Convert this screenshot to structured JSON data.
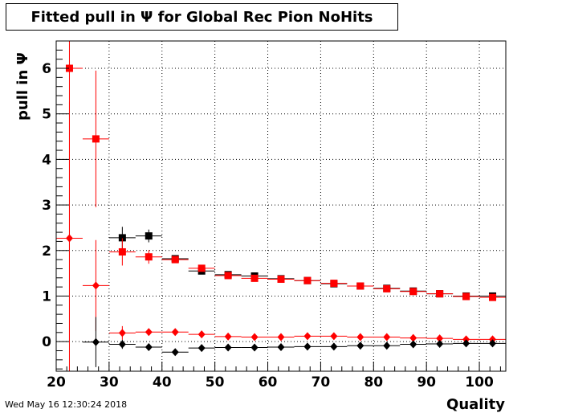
{
  "header": {
    "title": "Fitted pull in  Ψ  for Global Rec Pion NoHits",
    "datestamp": "Wed May 16 12:30:24 2018"
  },
  "chart_data": {
    "type": "scatter",
    "title": "Fitted pull in  Ψ  for Global Rec Pion NoHits",
    "xlabel": "Quality",
    "ylabel": "pull in  Ψ",
    "xlim": [
      20,
      105
    ],
    "ylim": [
      -0.65,
      6.6
    ],
    "xticks": [
      20,
      30,
      40,
      50,
      60,
      70,
      80,
      90,
      100
    ],
    "yticks": [
      0,
      1,
      2,
      3,
      4,
      5,
      6
    ],
    "grid": true,
    "bin_half_width": 2.5,
    "colors": {
      "black": "#000000",
      "red": "#ff0000"
    },
    "series": [
      {
        "color": "#000000",
        "marker": "square",
        "points": [
          {
            "x": 32.5,
            "y": 2.28,
            "err": 0.24
          },
          {
            "x": 37.5,
            "y": 2.32,
            "err": 0.14
          },
          {
            "x": 42.5,
            "y": 1.82,
            "err": 0.05
          },
          {
            "x": 47.5,
            "y": 1.55,
            "err": 0.04
          },
          {
            "x": 52.5,
            "y": 1.47,
            "err": 0.03
          },
          {
            "x": 57.5,
            "y": 1.44,
            "err": 0.03
          },
          {
            "x": 62.5,
            "y": 1.38,
            "err": 0.03
          },
          {
            "x": 67.5,
            "y": 1.34,
            "err": 0.02
          },
          {
            "x": 72.5,
            "y": 1.27,
            "err": 0.02
          },
          {
            "x": 77.5,
            "y": 1.22,
            "err": 0.02
          },
          {
            "x": 82.5,
            "y": 1.17,
            "err": 0.02
          },
          {
            "x": 87.5,
            "y": 1.11,
            "err": 0.02
          },
          {
            "x": 92.5,
            "y": 1.05,
            "err": 0.02
          },
          {
            "x": 97.5,
            "y": 1.0,
            "err": 0.02
          },
          {
            "x": 102.5,
            "y": 1.0,
            "err": 0.02
          }
        ]
      },
      {
        "color": "#ff0000",
        "marker": "square",
        "points": [
          {
            "x": 22.5,
            "y": 6.0,
            "err": 6.0
          },
          {
            "x": 27.5,
            "y": 4.45,
            "err": 1.5
          },
          {
            "x": 32.5,
            "y": 1.97,
            "err": 0.3
          },
          {
            "x": 37.5,
            "y": 1.86,
            "err": 0.15
          },
          {
            "x": 42.5,
            "y": 1.8,
            "err": 0.06
          },
          {
            "x": 47.5,
            "y": 1.61,
            "err": 0.04
          },
          {
            "x": 52.5,
            "y": 1.45,
            "err": 0.03
          },
          {
            "x": 57.5,
            "y": 1.39,
            "err": 0.03
          },
          {
            "x": 62.5,
            "y": 1.37,
            "err": 0.03
          },
          {
            "x": 67.5,
            "y": 1.34,
            "err": 0.02
          },
          {
            "x": 72.5,
            "y": 1.28,
            "err": 0.02
          },
          {
            "x": 77.5,
            "y": 1.22,
            "err": 0.02
          },
          {
            "x": 82.5,
            "y": 1.16,
            "err": 0.02
          },
          {
            "x": 87.5,
            "y": 1.1,
            "err": 0.02
          },
          {
            "x": 92.5,
            "y": 1.05,
            "err": 0.02
          },
          {
            "x": 97.5,
            "y": 0.99,
            "err": 0.02
          },
          {
            "x": 102.5,
            "y": 0.97,
            "err": 0.02
          }
        ]
      },
      {
        "color": "#ff0000",
        "marker": "diamond",
        "points": [
          {
            "x": 22.5,
            "y": 2.27,
            "err": 3.0
          },
          {
            "x": 27.5,
            "y": 1.23,
            "err": 1.0
          },
          {
            "x": 32.5,
            "y": 0.19,
            "err": 0.15
          },
          {
            "x": 37.5,
            "y": 0.21,
            "err": 0.06
          },
          {
            "x": 42.5,
            "y": 0.21,
            "err": 0.03
          },
          {
            "x": 47.5,
            "y": 0.16,
            "err": 0.02
          },
          {
            "x": 52.5,
            "y": 0.11,
            "err": 0.02
          },
          {
            "x": 57.5,
            "y": 0.1,
            "err": 0.02
          },
          {
            "x": 62.5,
            "y": 0.1,
            "err": 0.02
          },
          {
            "x": 67.5,
            "y": 0.12,
            "err": 0.02
          },
          {
            "x": 72.5,
            "y": 0.12,
            "err": 0.02
          },
          {
            "x": 77.5,
            "y": 0.1,
            "err": 0.02
          },
          {
            "x": 82.5,
            "y": 0.1,
            "err": 0.02
          },
          {
            "x": 87.5,
            "y": 0.08,
            "err": 0.02
          },
          {
            "x": 92.5,
            "y": 0.07,
            "err": 0.02
          },
          {
            "x": 97.5,
            "y": 0.05,
            "err": 0.02
          },
          {
            "x": 102.5,
            "y": 0.05,
            "err": 0.02
          }
        ]
      },
      {
        "color": "#000000",
        "marker": "diamond",
        "points": [
          {
            "x": 27.5,
            "y": -0.01,
            "err": 0.55
          },
          {
            "x": 32.5,
            "y": -0.06,
            "err": 0.1
          },
          {
            "x": 37.5,
            "y": -0.12,
            "err": 0.05
          },
          {
            "x": 42.5,
            "y": -0.23,
            "err": 0.03
          },
          {
            "x": 47.5,
            "y": -0.14,
            "err": 0.02
          },
          {
            "x": 52.5,
            "y": -0.13,
            "err": 0.02
          },
          {
            "x": 57.5,
            "y": -0.13,
            "err": 0.02
          },
          {
            "x": 62.5,
            "y": -0.12,
            "err": 0.02
          },
          {
            "x": 67.5,
            "y": -0.11,
            "err": 0.02
          },
          {
            "x": 72.5,
            "y": -0.11,
            "err": 0.02
          },
          {
            "x": 77.5,
            "y": -0.09,
            "err": 0.02
          },
          {
            "x": 82.5,
            "y": -0.09,
            "err": 0.02
          },
          {
            "x": 87.5,
            "y": -0.06,
            "err": 0.02
          },
          {
            "x": 92.5,
            "y": -0.05,
            "err": 0.02
          },
          {
            "x": 97.5,
            "y": -0.04,
            "err": 0.02
          },
          {
            "x": 102.5,
            "y": -0.04,
            "err": 0.02
          }
        ]
      }
    ]
  }
}
